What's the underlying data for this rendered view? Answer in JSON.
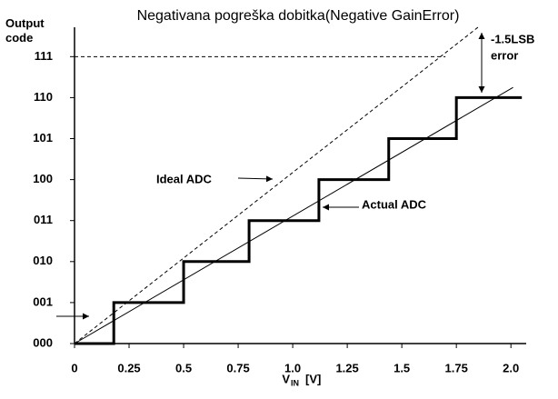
{
  "chart_data": {
    "type": "line",
    "title": "Negativana pogreška dobitka(Negative GainError)",
    "y_label": "Output code",
    "x_label": "V",
    "x_label_subscript": "IN",
    "x_label_unit": "[V]",
    "xlim": [
      0,
      2.07
    ],
    "ylim": [
      0,
      7.75
    ],
    "xticks": [
      0,
      0.25,
      0.5,
      0.75,
      {
        "value": 1,
        "label": "1.0"
      },
      1.25,
      1.5,
      1.75,
      {
        "value": 2,
        "label": "2.0"
      }
    ],
    "yticks": [
      {
        "value": 0,
        "label": "000"
      },
      {
        "value": 1,
        "label": "001"
      },
      {
        "value": 2,
        "label": "010"
      },
      {
        "value": 3,
        "label": "011"
      },
      {
        "value": 4,
        "label": "100"
      },
      {
        "value": 5,
        "label": "101"
      },
      {
        "value": 6,
        "label": "110"
      },
      {
        "value": 7,
        "label": "111"
      }
    ],
    "series": [
      {
        "color": "#000000",
        "style": "dashed",
        "width": 1,
        "x": [
          0,
          1.7
        ],
        "values": [
          7,
          7
        ]
      },
      {
        "color": "#000000",
        "style": "dashed",
        "width": 1,
        "x": [
          0,
          1.85
        ],
        "values": [
          0,
          7.72
        ]
      },
      {
        "color": "#000000",
        "style": "solid",
        "width": 1,
        "x": [
          0,
          2.01
        ],
        "values": [
          0,
          6.25
        ]
      },
      {
        "color": "#000000",
        "style": "solid",
        "width": 3,
        "x": [
          0,
          0.18,
          0.18,
          0.5,
          0.5,
          0.8,
          0.8,
          1.12,
          1.12,
          1.44,
          1.44,
          1.75,
          1.75,
          2.05
        ],
        "values": [
          0,
          0,
          1,
          1,
          2,
          2,
          3,
          3,
          4,
          4,
          5,
          5,
          6,
          6
        ]
      }
    ],
    "annotations": [
      "Ideal ADC",
      "Actual ADC",
      "-1.5LSB",
      "error"
    ]
  }
}
